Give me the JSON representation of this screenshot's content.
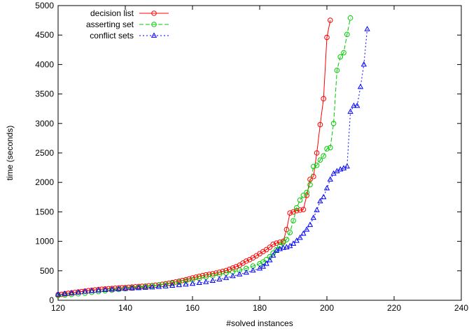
{
  "chart_data": {
    "type": "line",
    "title": "",
    "xlabel": "#solved instances",
    "ylabel": "time (seconds)",
    "xlim": [
      120,
      240
    ],
    "ylim": [
      0,
      5000
    ],
    "x_ticks": [
      120,
      140,
      160,
      180,
      200,
      220,
      240
    ],
    "y_ticks": [
      0,
      500,
      1000,
      1500,
      2000,
      2500,
      3000,
      3500,
      4000,
      4500,
      5000
    ],
    "grid": false,
    "legend_position": "top-left",
    "series": [
      {
        "name": "decision list",
        "color": "#ff0000",
        "line_style": "solid",
        "marker": "circle",
        "x": [
          120,
          121,
          122,
          123,
          124,
          125,
          126,
          127,
          128,
          129,
          130,
          131,
          132,
          133,
          134,
          135,
          136,
          137,
          138,
          139,
          140,
          141,
          142,
          143,
          144,
          145,
          146,
          147,
          148,
          149,
          150,
          151,
          152,
          153,
          154,
          155,
          156,
          157,
          158,
          159,
          160,
          161,
          162,
          163,
          164,
          165,
          166,
          167,
          168,
          169,
          170,
          171,
          172,
          173,
          174,
          175,
          176,
          177,
          178,
          179,
          180,
          181,
          182,
          183,
          184,
          185,
          186,
          187,
          188,
          189,
          190,
          191,
          192,
          193,
          194,
          195,
          196,
          197,
          198,
          199,
          200,
          201
        ],
        "y": [
          95,
          100,
          110,
          118,
          125,
          132,
          140,
          148,
          155,
          162,
          170,
          176,
          182,
          188,
          192,
          196,
          200,
          204,
          208,
          212,
          216,
          220,
          224,
          228,
          232,
          236,
          240,
          245,
          250,
          255,
          262,
          270,
          280,
          290,
          300,
          310,
          322,
          335,
          348,
          362,
          378,
          392,
          405,
          418,
          430,
          440,
          450,
          462,
          475,
          490,
          505,
          525,
          548,
          570,
          595,
          630,
          665,
          690,
          720,
          755,
          790,
          825,
          860,
          900,
          950,
          970,
          985,
          1000,
          1200,
          1480,
          1500,
          1520,
          1530,
          1540,
          1780,
          2050,
          2100,
          2500,
          2980,
          3420,
          4460,
          4750
        ]
      },
      {
        "name": "asserting set",
        "color": "#00cc00",
        "line_style": "dashed",
        "marker": "circle",
        "x": [
          120,
          122,
          124,
          126,
          128,
          130,
          132,
          134,
          136,
          138,
          140,
          142,
          144,
          146,
          148,
          150,
          152,
          154,
          156,
          158,
          160,
          162,
          164,
          166,
          168,
          170,
          172,
          174,
          176,
          178,
          180,
          181,
          182,
          183,
          184,
          185,
          186,
          187,
          188,
          189,
          190,
          191,
          192,
          193,
          194,
          195,
          196,
          197,
          198,
          199,
          200,
          201,
          202,
          203,
          204,
          205,
          206,
          207
        ],
        "y": [
          80,
          90,
          100,
          110,
          122,
          135,
          148,
          160,
          172,
          184,
          196,
          208,
          220,
          232,
          245,
          258,
          272,
          288,
          305,
          325,
          348,
          372,
          395,
          418,
          440,
          462,
          485,
          510,
          540,
          580,
          620,
          650,
          690,
          740,
          800,
          860,
          920,
          980,
          1030,
          1150,
          1350,
          1570,
          1700,
          1780,
          1830,
          1960,
          2270,
          2290,
          2380,
          2450,
          2570,
          2590,
          3000,
          3900,
          4130,
          4200,
          4510,
          4790
        ]
      },
      {
        "name": "conflict sets",
        "color": "#0000ff",
        "line_style": "dotted",
        "marker": "triangle",
        "x": [
          120,
          122,
          124,
          126,
          128,
          130,
          132,
          134,
          136,
          138,
          140,
          142,
          144,
          146,
          148,
          150,
          152,
          154,
          156,
          158,
          160,
          162,
          164,
          166,
          168,
          170,
          172,
          174,
          176,
          178,
          180,
          181,
          182,
          183,
          184,
          185,
          186,
          187,
          188,
          189,
          190,
          191,
          192,
          193,
          194,
          195,
          196,
          197,
          198,
          199,
          200,
          201,
          202,
          203,
          204,
          205,
          206,
          207,
          208,
          209,
          210,
          211,
          212
        ],
        "y": [
          100,
          110,
          122,
          135,
          148,
          158,
          168,
          176,
          183,
          190,
          196,
          202,
          208,
          214,
          220,
          228,
          238,
          248,
          258,
          268,
          280,
          295,
          310,
          330,
          355,
          380,
          410,
          440,
          470,
          505,
          540,
          570,
          620,
          680,
          760,
          840,
          870,
          890,
          900,
          920,
          960,
          1010,
          1060,
          1130,
          1200,
          1280,
          1400,
          1530,
          1680,
          1750,
          1900,
          2050,
          2150,
          2190,
          2220,
          2240,
          2270,
          3200,
          3300,
          3300,
          3620,
          4000,
          4600
        ]
      }
    ]
  }
}
